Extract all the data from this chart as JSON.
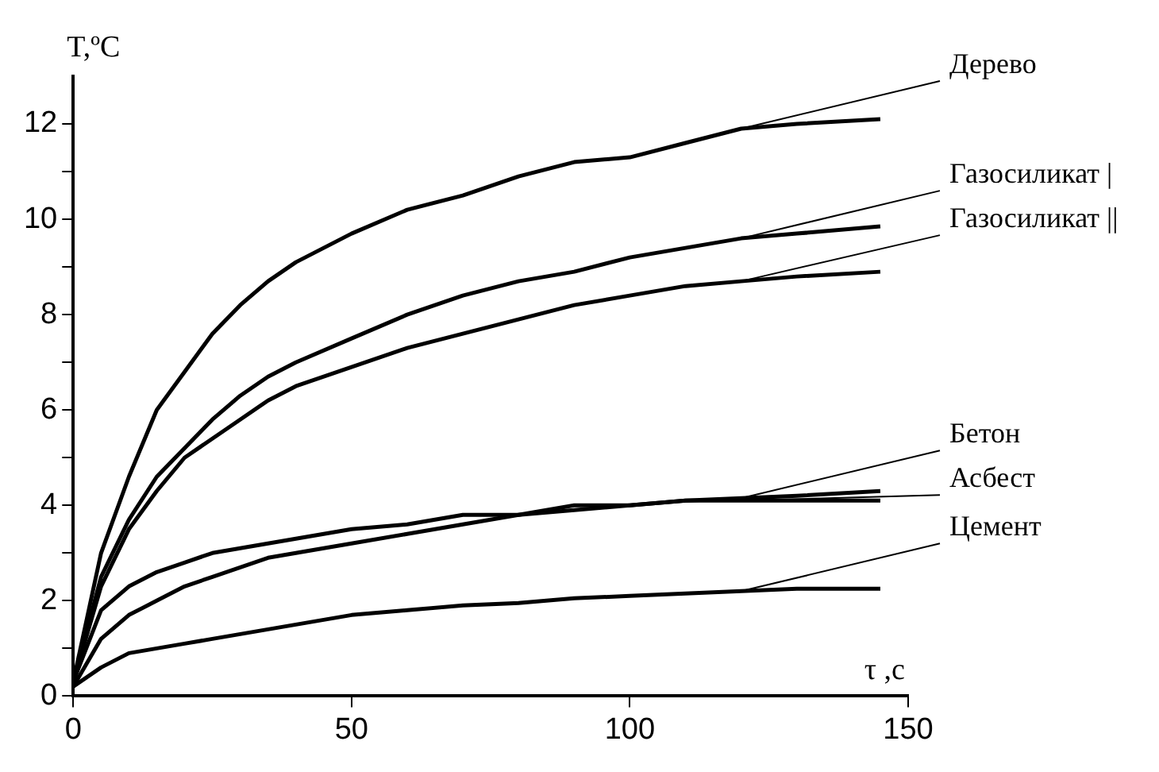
{
  "chart_data": {
    "type": "line",
    "xlabel": "τ ,c",
    "ylabel": "T,ºC",
    "xlim": [
      0,
      150
    ],
    "xticks": [
      0,
      50,
      100,
      150
    ],
    "ylim": [
      0,
      13
    ],
    "yticks": [
      0,
      {
        "value": 1,
        "label": null
      },
      2,
      {
        "value": 3,
        "label": null
      },
      4,
      {
        "value": 5,
        "label": null
      },
      6,
      {
        "value": 7,
        "label": null
      },
      8,
      {
        "value": 9,
        "label": null
      },
      10,
      {
        "value": 11,
        "label": null
      },
      12
    ],
    "grid": false,
    "legend": false,
    "marker": "none",
    "line_style": "solid",
    "x": [
      0,
      5,
      10,
      15,
      20,
      25,
      30,
      35,
      40,
      50,
      60,
      70,
      80,
      90,
      100,
      110,
      120,
      130,
      145
    ],
    "series": [
      {
        "name": "Дерево",
        "color": "#000000",
        "values": [
          0.3,
          3,
          4.6,
          6,
          6.8,
          7.6,
          8.2,
          8.7,
          9.1,
          9.7,
          10.2,
          10.5,
          10.9,
          11.2,
          11.3,
          11.6,
          11.9,
          12,
          12.1
        ]
      },
      {
        "name": "Газосиликат |",
        "color": "#000000",
        "values": [
          0.3,
          2.5,
          3.7,
          4.6,
          5.2,
          5.8,
          6.3,
          6.7,
          7,
          7.5,
          8,
          8.4,
          8.7,
          8.9,
          9.2,
          9.4,
          9.6,
          9.7,
          9.85
        ]
      },
      {
        "name": "Газосиликат ||",
        "color": "#000000",
        "values": [
          0.3,
          2.3,
          3.5,
          4.3,
          5,
          5.4,
          5.8,
          6.2,
          6.5,
          6.9,
          7.3,
          7.6,
          7.9,
          8.2,
          8.4,
          8.6,
          8.7,
          8.8,
          8.9
        ]
      },
      {
        "name": "Бетон",
        "color": "#000000",
        "values": [
          0.3,
          1.8,
          2.3,
          2.6,
          2.8,
          3,
          3.1,
          3.2,
          3.3,
          3.5,
          3.6,
          3.8,
          3.8,
          3.9,
          4,
          4.1,
          4.15,
          4.2,
          4.3
        ]
      },
      {
        "name": "Асбест",
        "color": "#000000",
        "values": [
          0.2,
          1.2,
          1.7,
          2,
          2.3,
          2.5,
          2.7,
          2.9,
          3,
          3.2,
          3.4,
          3.6,
          3.8,
          4,
          4,
          4.1,
          4.1,
          4.1,
          4.1
        ]
      },
      {
        "name": "Цемент",
        "color": "#000000",
        "values": [
          0.2,
          0.6,
          0.9,
          1,
          1.1,
          1.2,
          1.3,
          1.4,
          1.5,
          1.7,
          1.8,
          1.9,
          1.95,
          2.05,
          2.1,
          2.15,
          2.2,
          2.25,
          2.25
        ]
      }
    ]
  }
}
